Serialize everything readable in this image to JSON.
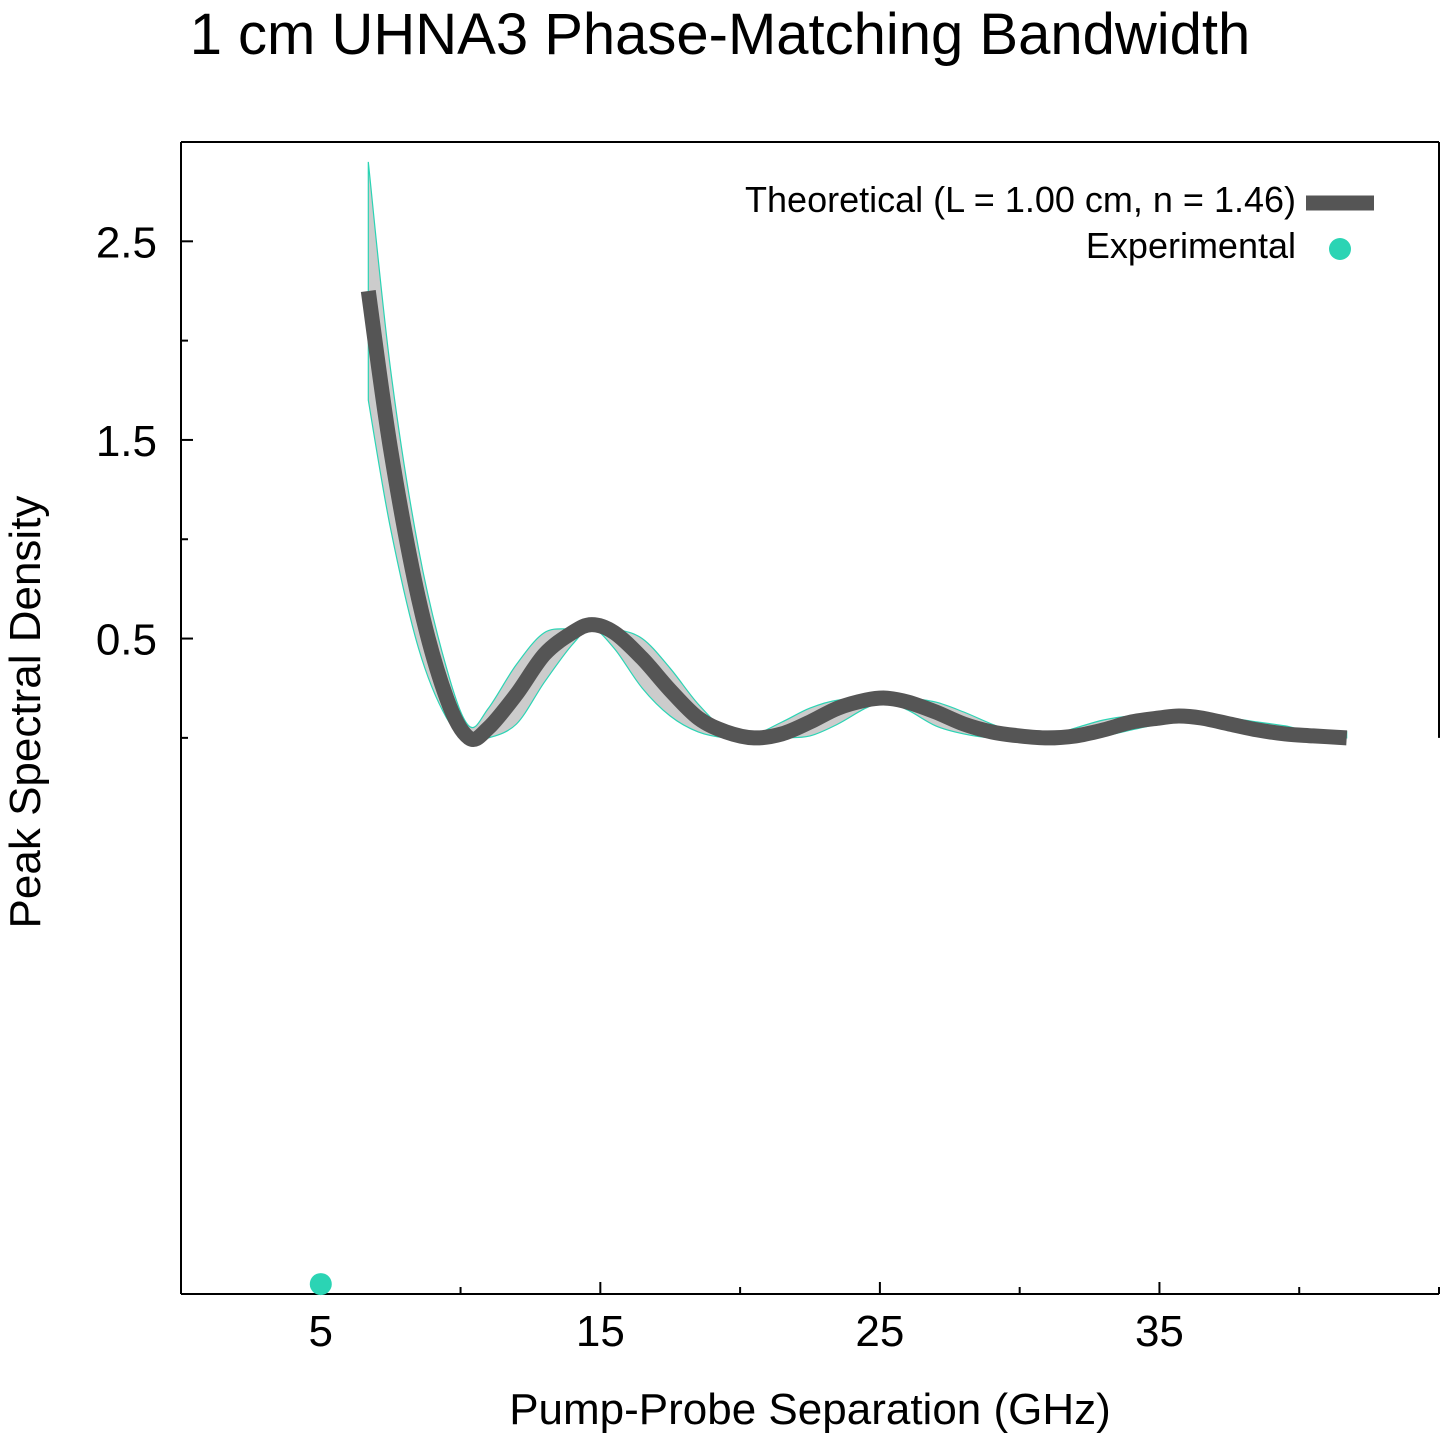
{
  "chart_data": {
    "type": "line",
    "title": "1 cm UHNA3 Phase-Matching Bandwidth",
    "xlabel": "Pump-Probe Separation (GHz)",
    "ylabel": "Peak Spectral Density",
    "xlim": [
      0,
      45
    ],
    "ylim": [
      -2.8,
      3.0
    ],
    "xticks": [
      5,
      15,
      25,
      35
    ],
    "xtick_labels": [
      "5",
      "15",
      "25",
      "35"
    ],
    "x_minor_ticks": [
      0,
      10,
      20,
      30,
      40,
      45
    ],
    "yticks": [
      0.5,
      1.5,
      2.5
    ],
    "ytick_labels": [
      "0.5",
      "1.5",
      "2.5"
    ],
    "y_minor_ticks": [
      0.0,
      1.0,
      2.0
    ],
    "legend_position": "top-right",
    "grid": false,
    "series": [
      {
        "name": "Theoretical (L = 1.00 cm, n = 1.46)",
        "style": "thick-line",
        "color": "#555555",
        "band_color": "#cccccc",
        "band_edge_color": "#2bd4b4",
        "x": [
          6.7,
          7.5,
          8.5,
          9.5,
          10.3,
          11.0,
          12.0,
          13.0,
          14.0,
          14.7,
          15.5,
          16.5,
          17.5,
          18.5,
          19.5,
          20.5,
          21.5,
          22.5,
          23.5,
          24.5,
          25.2,
          26.0,
          27.0,
          28.0,
          29.0,
          30.0,
          31.0,
          32.0,
          33.0,
          34.0,
          35.0,
          35.7,
          36.5,
          37.5,
          38.5,
          39.5,
          40.5,
          41.7
        ],
        "y": [
          2.25,
          1.45,
          0.7,
          0.2,
          0.0,
          0.05,
          0.22,
          0.42,
          0.53,
          0.57,
          0.53,
          0.4,
          0.24,
          0.1,
          0.03,
          0.0,
          0.02,
          0.08,
          0.15,
          0.19,
          0.2,
          0.18,
          0.13,
          0.07,
          0.03,
          0.01,
          0.0,
          0.01,
          0.04,
          0.08,
          0.1,
          0.11,
          0.1,
          0.07,
          0.04,
          0.02,
          0.01,
          0.0
        ],
        "band_upper": [
          2.9,
          1.85,
          0.95,
          0.35,
          0.06,
          0.15,
          0.37,
          0.53,
          0.55,
          0.57,
          0.55,
          0.5,
          0.35,
          0.17,
          0.04,
          0.02,
          0.08,
          0.15,
          0.19,
          0.19,
          0.2,
          0.2,
          0.18,
          0.13,
          0.07,
          0.02,
          0.01,
          0.05,
          0.09,
          0.11,
          0.11,
          0.11,
          0.11,
          0.1,
          0.08,
          0.06,
          0.03,
          0.03
        ],
        "band_lower": [
          1.7,
          1.05,
          0.45,
          0.1,
          0.0,
          0.0,
          0.07,
          0.28,
          0.47,
          0.55,
          0.45,
          0.25,
          0.11,
          0.03,
          0.0,
          0.0,
          0.0,
          0.01,
          0.07,
          0.15,
          0.18,
          0.14,
          0.06,
          0.02,
          0.0,
          0.0,
          0.0,
          0.0,
          0.01,
          0.04,
          0.07,
          0.08,
          0.07,
          0.04,
          0.01,
          0.0,
          0.0,
          0.0
        ]
      },
      {
        "name": "Experimental",
        "style": "points",
        "color": "#2bd4b4",
        "x": [
          5
        ],
        "y": [
          -2.75
        ]
      }
    ]
  }
}
